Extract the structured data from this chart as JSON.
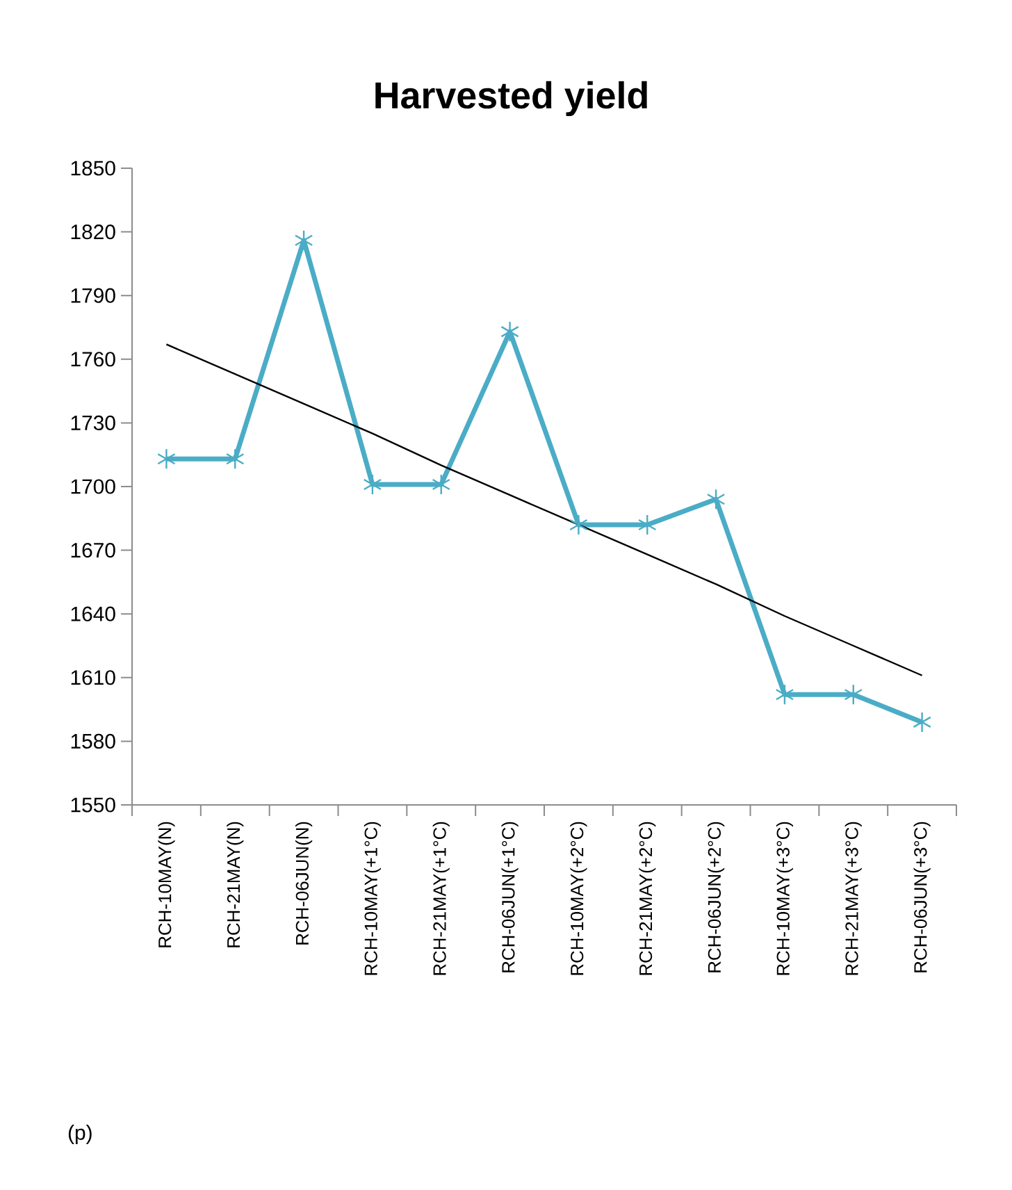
{
  "chart_data": {
    "type": "line",
    "title": "Harvested yield",
    "categories": [
      "RCH-10MAY(N)",
      "RCH-21MAY(N)",
      "RCH-06JUN(N)",
      "RCH-10MAY(+1°C)",
      "RCH-21MAY(+1°C)",
      "RCH-06JUN(+1°C)",
      "RCH-10MAY(+2°C)",
      "RCH-21MAY(+2°C)",
      "RCH-06JUN(+2°C)",
      "RCH-10MAY(+3°C)",
      "RCH-21MAY(+3°C)",
      "RCH-06JUN(+3°C)"
    ],
    "series": [
      {
        "color": "#4bacc6",
        "marker": "cross",
        "values": [
          1713,
          1713,
          1816,
          1701,
          1701,
          1773,
          1682,
          1682,
          1694,
          1602,
          1602,
          1589
        ]
      },
      {
        "type": "line",
        "color": "#000000",
        "marker": "none",
        "values": [
          1767,
          1753,
          1739,
          1725,
          1710,
          1696,
          1682,
          1668,
          1654,
          1639,
          1625,
          1611
        ]
      }
    ],
    "ylim": [
      1550,
      1850
    ],
    "yticks": [
      1550,
      1580,
      1610,
      1640,
      1670,
      1700,
      1730,
      1760,
      1790,
      1820,
      1850
    ],
    "annotations": [
      "(p)"
    ]
  }
}
